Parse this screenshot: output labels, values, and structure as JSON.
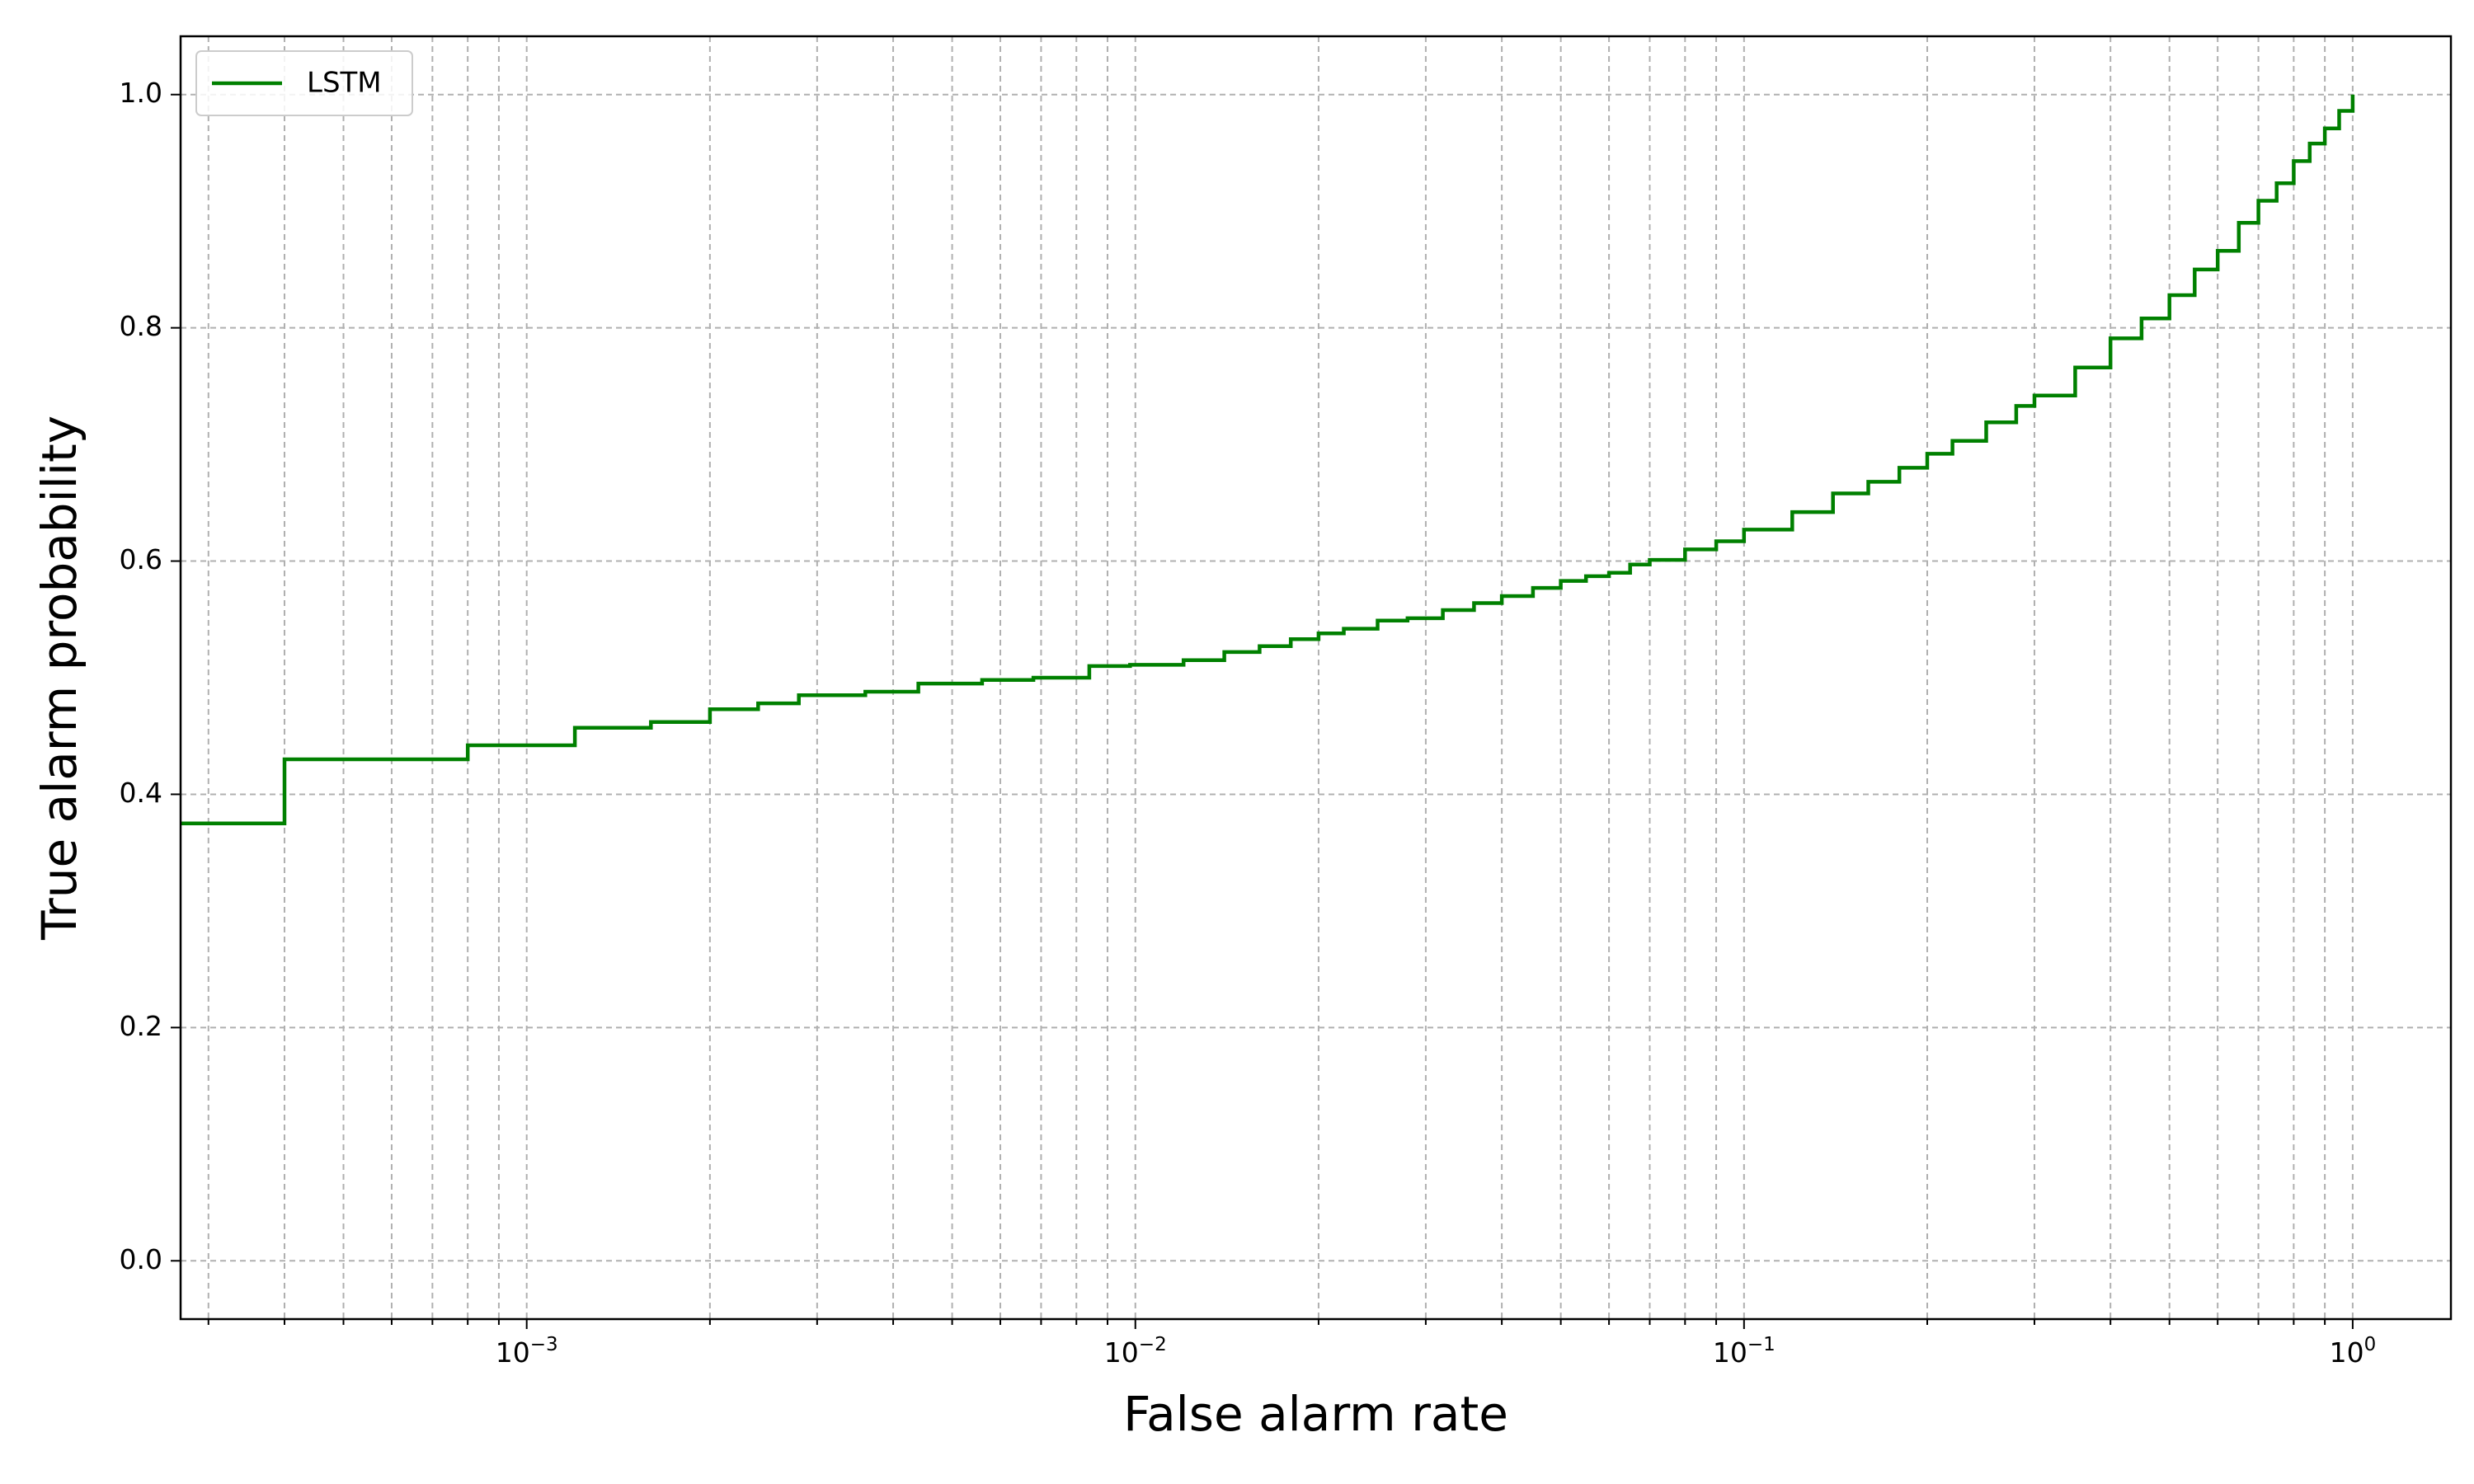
{
  "chart_data": {
    "type": "line",
    "title": "",
    "xlabel": "False alarm rate",
    "ylabel": "True alarm probability",
    "x_scale": "log",
    "xlim": [
      0.00027,
      1.45
    ],
    "ylim": [
      -0.05,
      1.05
    ],
    "x_ticks": [
      {
        "value": 0.001,
        "base": "10",
        "exp": "−3"
      },
      {
        "value": 0.01,
        "base": "10",
        "exp": "−2"
      },
      {
        "value": 0.1,
        "base": "10",
        "exp": "−1"
      },
      {
        "value": 1,
        "base": "10",
        "exp": "0"
      }
    ],
    "y_ticks": [
      {
        "value": 0.0,
        "label": "0.0"
      },
      {
        "value": 0.2,
        "label": "0.2"
      },
      {
        "value": 0.4,
        "label": "0.4"
      },
      {
        "value": 0.6,
        "label": "0.6"
      },
      {
        "value": 0.8,
        "label": "0.8"
      },
      {
        "value": 1.0,
        "label": "1.0"
      }
    ],
    "grid": true,
    "grid_minor_x": true,
    "legend_position": "top-left",
    "series": [
      {
        "name": "LSTM",
        "color": "#008000",
        "drawstyle": "steps",
        "x": [
          0.00027,
          0.0004,
          0.0008,
          0.0012,
          0.0016,
          0.002,
          0.0024,
          0.0028,
          0.0036,
          0.0044,
          0.0056,
          0.0068,
          0.0084,
          0.0098,
          0.012,
          0.014,
          0.016,
          0.018,
          0.02,
          0.022,
          0.025,
          0.028,
          0.032,
          0.036,
          0.04,
          0.045,
          0.05,
          0.055,
          0.06,
          0.065,
          0.07,
          0.08,
          0.09,
          0.1,
          0.12,
          0.14,
          0.16,
          0.18,
          0.2,
          0.22,
          0.25,
          0.28,
          0.3,
          0.35,
          0.4,
          0.45,
          0.5,
          0.55,
          0.6,
          0.65,
          0.7,
          0.75,
          0.8,
          0.85,
          0.9,
          0.95,
          1.0
        ],
        "y": [
          0.375,
          0.43,
          0.442,
          0.457,
          0.462,
          0.473,
          0.478,
          0.485,
          0.488,
          0.495,
          0.498,
          0.5,
          0.51,
          0.511,
          0.515,
          0.522,
          0.527,
          0.533,
          0.538,
          0.542,
          0.549,
          0.551,
          0.558,
          0.564,
          0.57,
          0.577,
          0.583,
          0.587,
          0.59,
          0.597,
          0.601,
          0.61,
          0.617,
          0.627,
          0.642,
          0.658,
          0.668,
          0.68,
          0.692,
          0.703,
          0.719,
          0.733,
          0.742,
          0.766,
          0.791,
          0.808,
          0.828,
          0.85,
          0.866,
          0.89,
          0.909,
          0.924,
          0.943,
          0.958,
          0.971,
          0.986,
          1.0
        ]
      }
    ]
  }
}
